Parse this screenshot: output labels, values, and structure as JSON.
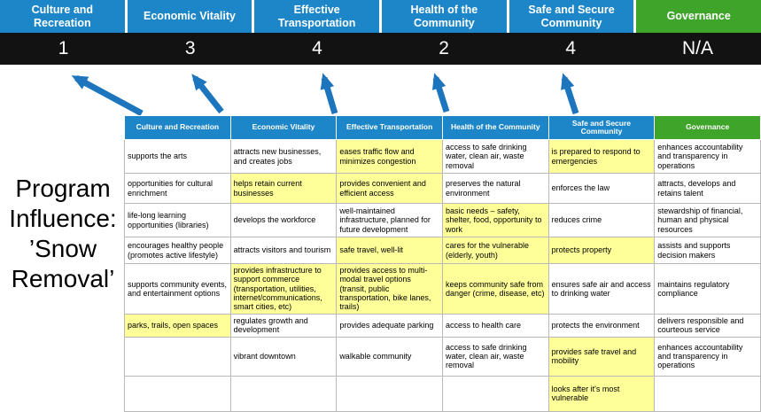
{
  "title": "Program Influence: ’Snow Removal’",
  "colors": {
    "header_blue": "#1d86c8",
    "governance_green": "#3fa42a",
    "score_band_bg": "#121212",
    "highlight_yellow": "#ffff99",
    "arrow_blue": "#1d76bd"
  },
  "summary": {
    "columns": [
      {
        "label": "Culture and Recreation",
        "score": "1",
        "theme": "blue"
      },
      {
        "label": "Economic Vitality",
        "score": "3",
        "theme": "blue"
      },
      {
        "label": "Effective Transportation",
        "score": "4",
        "theme": "blue"
      },
      {
        "label": "Health of the Community",
        "score": "2",
        "theme": "blue"
      },
      {
        "label": "Safe and Secure Community",
        "score": "4",
        "theme": "blue"
      },
      {
        "label": "Governance",
        "score": "N/A",
        "theme": "green"
      }
    ]
  },
  "matrix": {
    "rows": [
      {
        "cells": [
          {
            "text": "supports the arts",
            "highlight": false
          },
          {
            "text": "attracts new businesses, and creates jobs",
            "highlight": false
          },
          {
            "text": "eases traffic flow and minimizes congestion",
            "highlight": true
          },
          {
            "text": "access to safe drinking water, clean air, waste removal",
            "highlight": false
          },
          {
            "text": "is prepared to respond to emergencies",
            "highlight": true
          },
          {
            "text": "enhances accountability and transparency in operations",
            "highlight": false
          }
        ]
      },
      {
        "cells": [
          {
            "text": "opportunities for cultural enrichment",
            "highlight": false
          },
          {
            "text": "helps retain current businesses",
            "highlight": true
          },
          {
            "text": "provides convenient and efficient access",
            "highlight": true
          },
          {
            "text": "preserves the natural environment",
            "highlight": false
          },
          {
            "text": "enforces the law",
            "highlight": false
          },
          {
            "text": "attracts, develops and retains talent",
            "highlight": false
          }
        ]
      },
      {
        "cells": [
          {
            "text": "life-long learning opportunities (libraries)",
            "highlight": false
          },
          {
            "text": "develops the workforce",
            "highlight": false
          },
          {
            "text": "well-maintained infrastructure, planned for future development",
            "highlight": false
          },
          {
            "text": "basic needs – safety, shelter, food, opportunity to work",
            "highlight": true
          },
          {
            "text": "reduces crime",
            "highlight": false
          },
          {
            "text": "stewardship of financial, human and physical resources",
            "highlight": false
          }
        ]
      },
      {
        "cells": [
          {
            "text": "encourages healthy people (promotes active lifestyle)",
            "highlight": false
          },
          {
            "text": "attracts visitors and tourism",
            "highlight": false
          },
          {
            "text": "safe travel, well-lit",
            "highlight": true
          },
          {
            "text": "cares for the vulnerable (elderly, youth)",
            "highlight": true
          },
          {
            "text": "protects property",
            "highlight": true
          },
          {
            "text": "assists and supports decision makers",
            "highlight": false
          }
        ]
      },
      {
        "cells": [
          {
            "text": "supports community events, and entertainment options",
            "highlight": false
          },
          {
            "text": "provides infrastructure to support commerce (transportation, utilities, internet/communications, smart cities, etc)",
            "highlight": true
          },
          {
            "text": "provides access to multi-modal travel options (transit, public transportation, bike lanes, trails)",
            "highlight": true
          },
          {
            "text": "keeps community safe from danger (crime, disease, etc)",
            "highlight": true
          },
          {
            "text": "ensures safe air and access to drinking water",
            "highlight": false
          },
          {
            "text": "maintains regulatory compliance",
            "highlight": false
          }
        ]
      },
      {
        "cells": [
          {
            "text": "parks, trails, open spaces",
            "highlight": true
          },
          {
            "text": "regulates growth and development",
            "highlight": false
          },
          {
            "text": "provides adequate parking",
            "highlight": false
          },
          {
            "text": "access to health care",
            "highlight": false
          },
          {
            "text": "protects the environment",
            "highlight": false
          },
          {
            "text": "delivers responsible and courteous service",
            "highlight": false
          }
        ]
      },
      {
        "cells": [
          {
            "text": "",
            "highlight": false
          },
          {
            "text": "vibrant downtown",
            "highlight": false
          },
          {
            "text": "walkable community",
            "highlight": false
          },
          {
            "text": "access to safe drinking water, clean air, waste removal",
            "highlight": false
          },
          {
            "text": "provides safe travel and mobility",
            "highlight": true
          },
          {
            "text": "enhances accountability and transparency in operations",
            "highlight": false
          }
        ]
      },
      {
        "cells": [
          {
            "text": "",
            "highlight": false
          },
          {
            "text": "",
            "highlight": false
          },
          {
            "text": "",
            "highlight": false
          },
          {
            "text": "",
            "highlight": false
          },
          {
            "text": "looks after it's most vulnerable",
            "highlight": true
          },
          {
            "text": "",
            "highlight": false
          }
        ]
      }
    ]
  }
}
